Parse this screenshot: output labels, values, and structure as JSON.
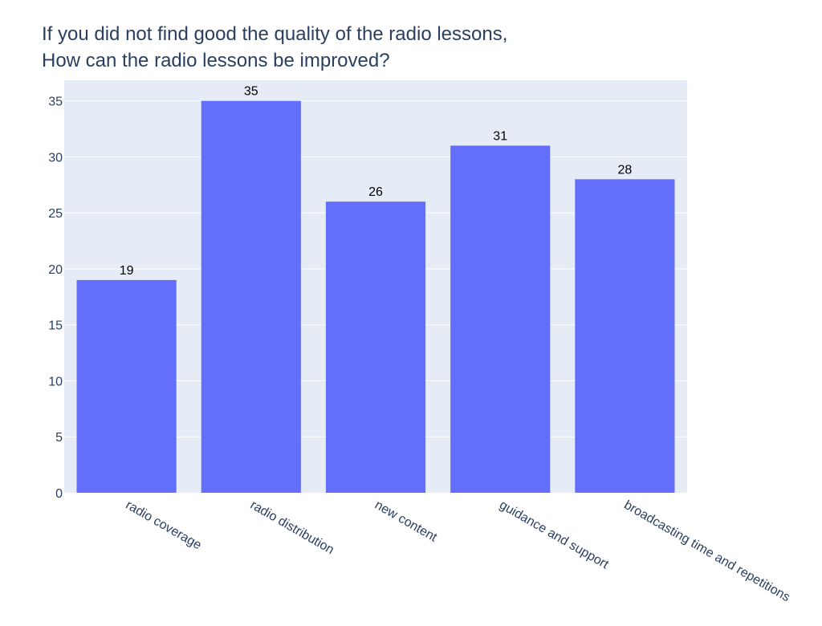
{
  "chart_data": {
    "type": "bar",
    "title_lines": [
      "If you did not find good the quality of the radio lessons,",
      "How can the radio lessons be improved?"
    ],
    "categories": [
      "radio coverage",
      "radio distribution",
      "new content",
      "guidance and support",
      "broadcasting time and repetitions"
    ],
    "values": [
      19,
      35,
      26,
      31,
      28
    ],
    "ylim": [
      0,
      36.84
    ],
    "yticks": [
      0,
      5,
      10,
      15,
      20,
      25,
      30,
      35
    ],
    "grid": true,
    "legend": "none",
    "colors": {
      "bar": "#636efa",
      "plot_bg": "#e5ecf6",
      "grid": "#ffffff",
      "tick_text": "#2a3f5f",
      "label_text": "#000000"
    }
  }
}
